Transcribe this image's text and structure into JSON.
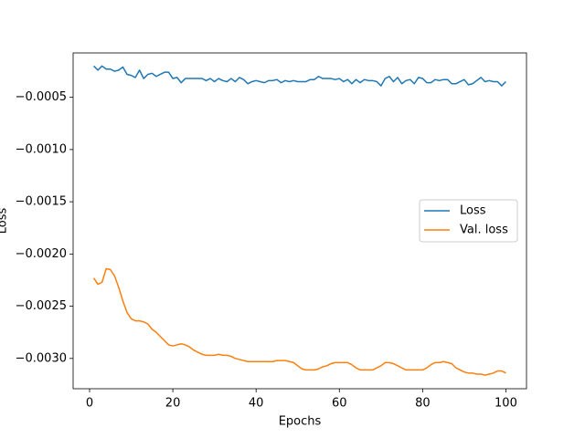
{
  "chart_data": {
    "type": "line",
    "x_label": "Epochs",
    "y_label": "Loss",
    "x": [
      1,
      2,
      3,
      4,
      5,
      6,
      7,
      8,
      9,
      10,
      11,
      12,
      13,
      14,
      15,
      16,
      17,
      18,
      19,
      20,
      21,
      22,
      23,
      24,
      25,
      26,
      27,
      28,
      29,
      30,
      31,
      32,
      33,
      34,
      35,
      36,
      37,
      38,
      39,
      40,
      41,
      42,
      43,
      44,
      45,
      46,
      47,
      48,
      49,
      50,
      51,
      52,
      53,
      54,
      55,
      56,
      57,
      58,
      59,
      60,
      61,
      62,
      63,
      64,
      65,
      66,
      67,
      68,
      69,
      70,
      71,
      72,
      73,
      74,
      75,
      76,
      77,
      78,
      79,
      80,
      81,
      82,
      83,
      84,
      85,
      86,
      87,
      88,
      89,
      90,
      91,
      92,
      93,
      94,
      95,
      96,
      97,
      98,
      99,
      100
    ],
    "series": [
      {
        "name": "Loss",
        "color": "#1f77b4",
        "values": [
          -0.0002,
          -0.00024,
          -0.0002,
          -0.00023,
          -0.00023,
          -0.00025,
          -0.00024,
          -0.00021,
          -0.00028,
          -0.00029,
          -0.00031,
          -0.00024,
          -0.00032,
          -0.00028,
          -0.00027,
          -0.0003,
          -0.00028,
          -0.00026,
          -0.00026,
          -0.00032,
          -0.00031,
          -0.00036,
          -0.00032,
          -0.00032,
          -0.00032,
          -0.00032,
          -0.00032,
          -0.00034,
          -0.00032,
          -0.00035,
          -0.00032,
          -0.00034,
          -0.00035,
          -0.00032,
          -0.00035,
          -0.00031,
          -0.00033,
          -0.00037,
          -0.00035,
          -0.00034,
          -0.00035,
          -0.00036,
          -0.00034,
          -0.00034,
          -0.00033,
          -0.00036,
          -0.00034,
          -0.00035,
          -0.00034,
          -0.00035,
          -0.00035,
          -0.00035,
          -0.00033,
          -0.00033,
          -0.0003,
          -0.00032,
          -0.00032,
          -0.00032,
          -0.00033,
          -0.00032,
          -0.00035,
          -0.00033,
          -0.00037,
          -0.00033,
          -0.00036,
          -0.00033,
          -0.00034,
          -0.00034,
          -0.00035,
          -0.00039,
          -0.00032,
          -0.0003,
          -0.00035,
          -0.00031,
          -0.00037,
          -0.00034,
          -0.00033,
          -0.00037,
          -0.00031,
          -0.00032,
          -0.00036,
          -0.00036,
          -0.00033,
          -0.00034,
          -0.00033,
          -0.00033,
          -0.00037,
          -0.00037,
          -0.00035,
          -0.00033,
          -0.00038,
          -0.00037,
          -0.00034,
          -0.00031,
          -0.00035,
          -0.00034,
          -0.00035,
          -0.00035,
          -0.00039,
          -0.00035
        ]
      },
      {
        "name": "Val. loss",
        "color": "#ff7f0e",
        "values": [
          -0.00223,
          -0.00229,
          -0.00227,
          -0.00214,
          -0.00215,
          -0.00221,
          -0.00232,
          -0.00245,
          -0.00256,
          -0.00262,
          -0.00264,
          -0.00264,
          -0.00265,
          -0.00267,
          -0.00272,
          -0.00275,
          -0.00279,
          -0.00283,
          -0.00287,
          -0.00288,
          -0.00287,
          -0.00286,
          -0.00287,
          -0.00289,
          -0.00292,
          -0.00294,
          -0.00296,
          -0.00297,
          -0.00297,
          -0.00297,
          -0.00296,
          -0.00297,
          -0.00297,
          -0.00298,
          -0.003,
          -0.00301,
          -0.00302,
          -0.00303,
          -0.00303,
          -0.00303,
          -0.00303,
          -0.00303,
          -0.00303,
          -0.00303,
          -0.00302,
          -0.00302,
          -0.00302,
          -0.00303,
          -0.00304,
          -0.00307,
          -0.0031,
          -0.00311,
          -0.00311,
          -0.00311,
          -0.0031,
          -0.00308,
          -0.00307,
          -0.00305,
          -0.00304,
          -0.00304,
          -0.00304,
          -0.00304,
          -0.00306,
          -0.00309,
          -0.00311,
          -0.00311,
          -0.00311,
          -0.00311,
          -0.00309,
          -0.00307,
          -0.00304,
          -0.00304,
          -0.00305,
          -0.00307,
          -0.00309,
          -0.00311,
          -0.00311,
          -0.00311,
          -0.00311,
          -0.00311,
          -0.00309,
          -0.00306,
          -0.00304,
          -0.00304,
          -0.00303,
          -0.00304,
          -0.00305,
          -0.00309,
          -0.00311,
          -0.00313,
          -0.00314,
          -0.00314,
          -0.00315,
          -0.00315,
          -0.00316,
          -0.00315,
          -0.00314,
          -0.00312,
          -0.00312,
          -0.00314
        ]
      }
    ],
    "xlim": [
      -3.95,
      104.95
    ],
    "xticks": [
      0,
      20,
      40,
      60,
      80,
      100
    ],
    "ylim": [
      -0.00329,
      -7.5e-05
    ],
    "yticks": [
      {
        "value": -0.003,
        "label": "−0.0030"
      },
      {
        "value": -0.0025,
        "label": "−0.0025"
      },
      {
        "value": -0.002,
        "label": "−0.0020"
      },
      {
        "value": -0.0015,
        "label": "−0.0015"
      },
      {
        "value": -0.001,
        "label": "−0.0010"
      },
      {
        "value": -0.0005,
        "label": "−0.0005"
      }
    ],
    "grid": false,
    "legend": "center right"
  }
}
